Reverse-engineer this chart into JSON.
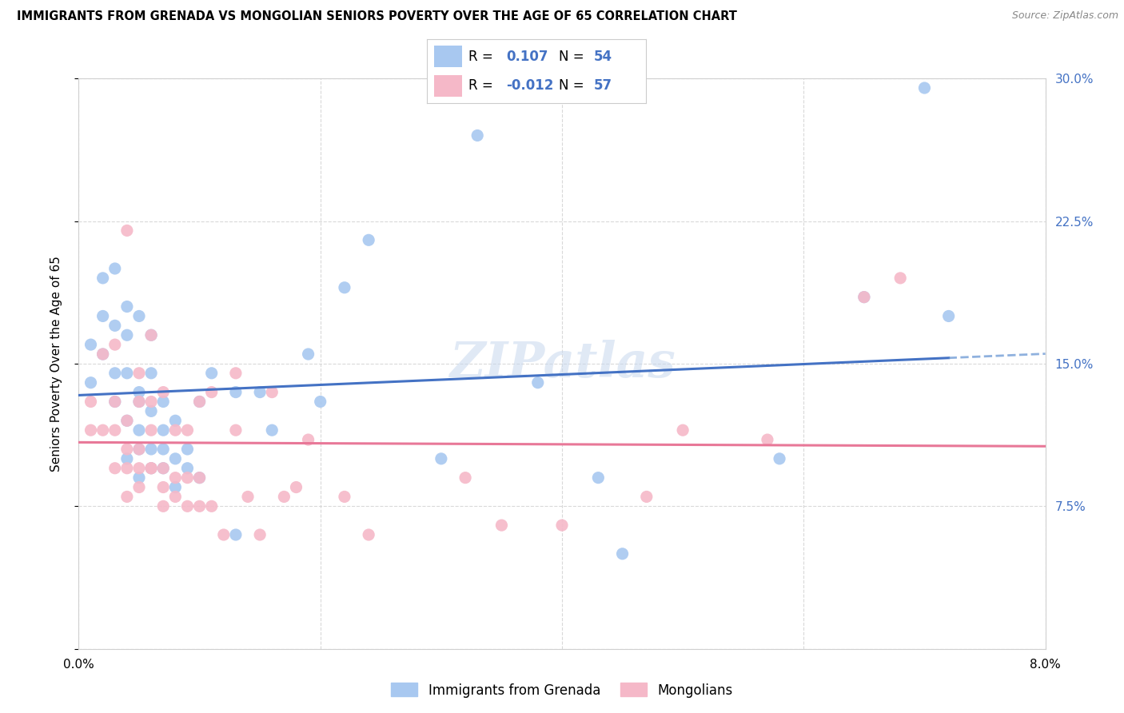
{
  "title": "IMMIGRANTS FROM GRENADA VS MONGOLIAN SENIORS POVERTY OVER THE AGE OF 65 CORRELATION CHART",
  "source": "Source: ZipAtlas.com",
  "ylabel": "Seniors Poverty Over the Age of 65",
  "xlabel_blue": "Immigrants from Grenada",
  "xlabel_pink": "Mongolians",
  "x_min": 0.0,
  "x_max": 0.08,
  "y_min": 0.0,
  "y_max": 0.3,
  "r_blue": 0.107,
  "n_blue": 54,
  "r_pink": -0.012,
  "n_pink": 57,
  "color_blue": "#a8c8f0",
  "color_pink": "#f5b8c8",
  "line_blue": "#4472c4",
  "line_pink": "#e87898",
  "line_dash_blue": "#6090d0",
  "watermark": "ZIPatlas",
  "blue_scatter_x": [
    0.001,
    0.001,
    0.002,
    0.002,
    0.002,
    0.003,
    0.003,
    0.003,
    0.003,
    0.004,
    0.004,
    0.004,
    0.004,
    0.004,
    0.005,
    0.005,
    0.005,
    0.005,
    0.005,
    0.005,
    0.006,
    0.006,
    0.006,
    0.006,
    0.006,
    0.007,
    0.007,
    0.007,
    0.007,
    0.008,
    0.008,
    0.008,
    0.009,
    0.009,
    0.01,
    0.01,
    0.011,
    0.013,
    0.013,
    0.015,
    0.016,
    0.019,
    0.02,
    0.022,
    0.024,
    0.03,
    0.033,
    0.038,
    0.043,
    0.045,
    0.058,
    0.065,
    0.07,
    0.072
  ],
  "blue_scatter_y": [
    0.14,
    0.16,
    0.155,
    0.175,
    0.195,
    0.13,
    0.145,
    0.17,
    0.2,
    0.1,
    0.12,
    0.145,
    0.165,
    0.18,
    0.09,
    0.105,
    0.115,
    0.13,
    0.135,
    0.175,
    0.095,
    0.105,
    0.125,
    0.145,
    0.165,
    0.095,
    0.105,
    0.115,
    0.13,
    0.085,
    0.1,
    0.12,
    0.095,
    0.105,
    0.09,
    0.13,
    0.145,
    0.06,
    0.135,
    0.135,
    0.115,
    0.155,
    0.13,
    0.19,
    0.215,
    0.1,
    0.27,
    0.14,
    0.09,
    0.05,
    0.1,
    0.185,
    0.295,
    0.175
  ],
  "pink_scatter_x": [
    0.001,
    0.001,
    0.002,
    0.002,
    0.003,
    0.003,
    0.003,
    0.003,
    0.004,
    0.004,
    0.004,
    0.004,
    0.004,
    0.005,
    0.005,
    0.005,
    0.005,
    0.005,
    0.006,
    0.006,
    0.006,
    0.006,
    0.006,
    0.007,
    0.007,
    0.007,
    0.007,
    0.008,
    0.008,
    0.008,
    0.009,
    0.009,
    0.009,
    0.01,
    0.01,
    0.01,
    0.011,
    0.011,
    0.012,
    0.013,
    0.013,
    0.014,
    0.015,
    0.016,
    0.017,
    0.018,
    0.019,
    0.022,
    0.024,
    0.032,
    0.035,
    0.04,
    0.047,
    0.05,
    0.057,
    0.065,
    0.068
  ],
  "pink_scatter_y": [
    0.115,
    0.13,
    0.115,
    0.155,
    0.095,
    0.115,
    0.13,
    0.16,
    0.08,
    0.095,
    0.105,
    0.12,
    0.22,
    0.085,
    0.095,
    0.105,
    0.13,
    0.145,
    0.095,
    0.095,
    0.115,
    0.13,
    0.165,
    0.075,
    0.085,
    0.095,
    0.135,
    0.08,
    0.09,
    0.115,
    0.075,
    0.09,
    0.115,
    0.075,
    0.09,
    0.13,
    0.075,
    0.135,
    0.06,
    0.115,
    0.145,
    0.08,
    0.06,
    0.135,
    0.08,
    0.085,
    0.11,
    0.08,
    0.06,
    0.09,
    0.065,
    0.065,
    0.08,
    0.115,
    0.11,
    0.185,
    0.195
  ]
}
